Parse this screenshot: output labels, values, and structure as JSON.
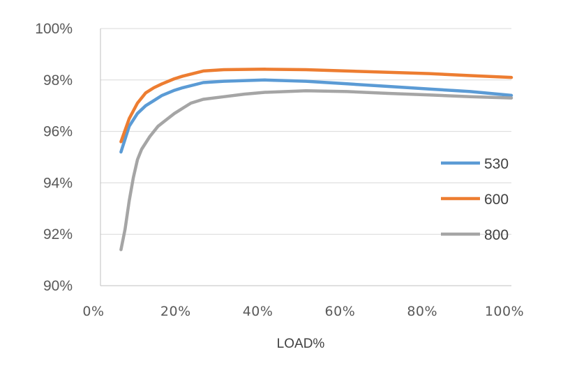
{
  "chart_data": {
    "type": "line",
    "title": "",
    "xlabel": "LOAD%",
    "ylabel": "",
    "x_ticks": [
      "0%",
      "20%",
      "40%",
      "60%",
      "80%",
      "100%"
    ],
    "y_ticks": [
      "90%",
      "92%",
      "94%",
      "96%",
      "98%",
      "100%"
    ],
    "xlim": [
      0,
      100
    ],
    "ylim": [
      90,
      100
    ],
    "grid": "horizontal",
    "legend_position": "right",
    "series": [
      {
        "name": "530",
        "color": "#5b9bd5",
        "x": [
          5,
          7,
          9,
          11,
          13,
          15,
          18,
          20,
          25,
          30,
          40,
          50,
          60,
          70,
          80,
          90,
          100
        ],
        "y": [
          95.2,
          96.2,
          96.7,
          97.0,
          97.2,
          97.4,
          97.6,
          97.7,
          97.9,
          97.95,
          98.0,
          97.95,
          97.85,
          97.75,
          97.65,
          97.55,
          97.4
        ]
      },
      {
        "name": "600",
        "color": "#ed7d31",
        "x": [
          5,
          7,
          9,
          11,
          13,
          15,
          18,
          20,
          25,
          30,
          40,
          50,
          60,
          70,
          80,
          90,
          100
        ],
        "y": [
          95.6,
          96.5,
          97.1,
          97.5,
          97.7,
          97.85,
          98.05,
          98.15,
          98.35,
          98.4,
          98.42,
          98.4,
          98.35,
          98.3,
          98.25,
          98.17,
          98.1
        ]
      },
      {
        "name": "800",
        "color": "#a5a5a5",
        "x": [
          5,
          6,
          7,
          8,
          9,
          10,
          12,
          14,
          16,
          18,
          20,
          22,
          25,
          30,
          35,
          40,
          50,
          60,
          70,
          80,
          90,
          100
        ],
        "y": [
          91.4,
          92.2,
          93.3,
          94.2,
          94.9,
          95.3,
          95.8,
          96.2,
          96.45,
          96.7,
          96.9,
          97.1,
          97.25,
          97.35,
          97.45,
          97.52,
          97.58,
          97.55,
          97.48,
          97.42,
          97.35,
          97.3
        ]
      }
    ]
  }
}
